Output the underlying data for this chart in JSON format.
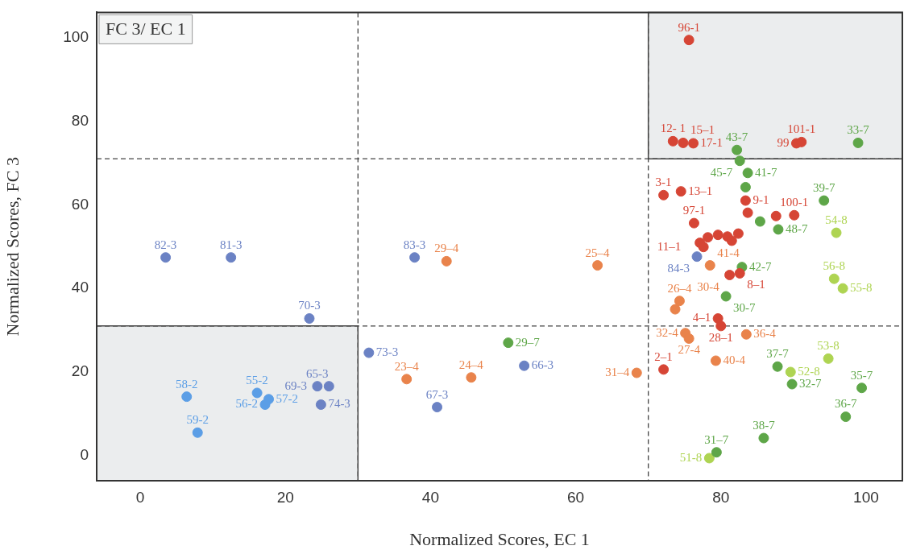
{
  "chart_data": {
    "type": "scatter",
    "xlabel": "Normalized Scores, EC 1",
    "ylabel": "Normalized Scores, FC 3",
    "xlim": [
      -6,
      105
    ],
    "ylim": [
      -6,
      106
    ],
    "xticks": [
      0,
      20,
      40,
      60,
      80,
      100
    ],
    "yticks": [
      0,
      20,
      40,
      60,
      80,
      100
    ],
    "grid": false,
    "legend": false,
    "marker": "circle",
    "ref_lines": [
      {
        "axis": "x",
        "value": 30,
        "line_style": "dashed"
      },
      {
        "axis": "x",
        "value": 70,
        "line_style": "dashed"
      },
      {
        "axis": "y",
        "value": 31,
        "line_style": "dashed"
      },
      {
        "axis": "y",
        "value": 71,
        "line_style": "dashed"
      }
    ],
    "series": [
      {
        "color": "#d64535",
        "x": [
          75.6,
          73.4,
          74.8,
          76.2,
          90.4,
          91.1,
          72.1,
          74.5,
          76.3,
          83.4,
          83.7,
          90.1,
          87.6,
          77.1,
          78.2,
          79.6,
          80.9,
          82.4,
          81.5,
          77.6,
          82.6,
          81.2,
          79.6,
          80.0,
          72.1
        ],
        "values": [
          99.4,
          75.2,
          74.8,
          74.7,
          74.7,
          75.0,
          62.3,
          63.2,
          55.6,
          61.0,
          58.1,
          57.5,
          57.3,
          50.9,
          52.2,
          52.8,
          52.4,
          53.1,
          51.4,
          49.9,
          43.6,
          43.2,
          32.8,
          31.0,
          20.6
        ]
      },
      {
        "color": "#5b9ee6",
        "x": [
          6.4,
          7.9,
          16.1,
          17.7,
          17.2
        ],
        "values": [
          14.1,
          5.5,
          15.0,
          13.5,
          12.2
        ]
      },
      {
        "color": "#6b82c4",
        "x": [
          3.5,
          12.5,
          37.8,
          23.3,
          31.5,
          40.9,
          52.9,
          24.4,
          26.0,
          24.9,
          76.7
        ],
        "values": [
          47.4,
          47.4,
          47.4,
          32.8,
          24.6,
          11.6,
          21.5,
          16.6,
          16.6,
          12.2,
          47.6
        ]
      },
      {
        "color": "#e9834b",
        "x": [
          42.2,
          63.0,
          36.7,
          45.6,
          68.4,
          74.3,
          73.7,
          75.1,
          75.6,
          78.5,
          79.3,
          83.5
        ],
        "values": [
          46.5,
          45.5,
          18.3,
          18.7,
          19.8,
          37.0,
          35.0,
          29.3,
          28.0,
          45.5,
          22.7,
          29.0
        ]
      },
      {
        "color": "#5ea648",
        "x": [
          50.7,
          82.2,
          98.9,
          82.6,
          83.7,
          83.4,
          94.2,
          85.4,
          87.9,
          82.9,
          80.7,
          87.8,
          89.8,
          99.4,
          97.2,
          85.9,
          79.4
        ],
        "values": [
          27.0,
          73.1,
          74.8,
          70.5,
          67.6,
          64.2,
          61.0,
          56.0,
          54.1,
          45.1,
          38.1,
          21.3,
          17.1,
          16.2,
          9.3,
          4.2,
          0.8
        ]
      },
      {
        "color": "#aed452",
        "x": [
          95.9,
          95.6,
          96.8,
          94.8,
          78.4,
          89.6
        ],
        "values": [
          53.3,
          42.3,
          40.0,
          23.2,
          -0.6,
          20.0
        ]
      }
    ],
    "annotations": [
      "FC 3/ EC 1",
      {
        "text": "96-1",
        "x": 75.6,
        "y": 99.4
      },
      {
        "text": "12- 1",
        "x": 73.4,
        "y": 75.2
      },
      {
        "text": "15–1",
        "x": 74.8,
        "y": 74.8
      },
      {
        "text": "17-1",
        "x": 76.2,
        "y": 74.7
      },
      {
        "text": "99",
        "x": 90.4,
        "y": 74.7
      },
      {
        "text": "101-1",
        "x": 91.1,
        "y": 75.0
      },
      {
        "text": "3-1",
        "x": 72.1,
        "y": 62.3
      },
      {
        "text": "13–1",
        "x": 74.5,
        "y": 63.2
      },
      {
        "text": "97-1",
        "x": 76.3,
        "y": 55.6
      },
      {
        "text": "9-1",
        "x": 83.4,
        "y": 61.0
      },
      {
        "text": "100-1",
        "x": 90.1,
        "y": 57.5
      },
      {
        "text": "11–1",
        "x": 77.6,
        "y": 49.9
      },
      {
        "text": "8–1",
        "x": 82.6,
        "y": 43.6
      },
      {
        "text": "4–1",
        "x": 79.6,
        "y": 32.8
      },
      {
        "text": "28–1",
        "x": 80.0,
        "y": 31.0
      },
      {
        "text": "2–1",
        "x": 72.1,
        "y": 20.6
      },
      {
        "text": "58-2",
        "x": 6.4,
        "y": 14.1
      },
      {
        "text": "59-2",
        "x": 7.9,
        "y": 5.5
      },
      {
        "text": "55-2",
        "x": 16.1,
        "y": 15.0
      },
      {
        "text": "57-2",
        "x": 17.7,
        "y": 13.5
      },
      {
        "text": "56-2",
        "x": 17.2,
        "y": 12.2
      },
      {
        "text": "82-3",
        "x": 3.5,
        "y": 47.4
      },
      {
        "text": "81-3",
        "x": 12.5,
        "y": 47.4
      },
      {
        "text": "83-3",
        "x": 37.8,
        "y": 47.4
      },
      {
        "text": "70-3",
        "x": 23.3,
        "y": 32.8
      },
      {
        "text": "73-3",
        "x": 31.5,
        "y": 24.6
      },
      {
        "text": "67-3",
        "x": 40.9,
        "y": 11.6
      },
      {
        "text": "66-3",
        "x": 52.9,
        "y": 21.5
      },
      {
        "text": "65-3",
        "x": 24.4,
        "y": 16.6
      },
      {
        "text": "69-3",
        "x": 26.0,
        "y": 16.6
      },
      {
        "text": "74-3",
        "x": 24.9,
        "y": 12.2
      },
      {
        "text": "84-3",
        "x": 76.7,
        "y": 47.6
      },
      {
        "text": "29–4",
        "x": 42.2,
        "y": 46.5
      },
      {
        "text": "25–4",
        "x": 63.0,
        "y": 45.5
      },
      {
        "text": "23–4",
        "x": 36.7,
        "y": 18.3
      },
      {
        "text": "24–4",
        "x": 45.6,
        "y": 18.7
      },
      {
        "text": "31–4",
        "x": 68.4,
        "y": 19.8
      },
      {
        "text": "26–4",
        "x": 74.3,
        "y": 37.0
      },
      {
        "text": "30-4",
        "x": 73.7,
        "y": 35.0
      },
      {
        "text": "32-4",
        "x": 75.1,
        "y": 29.3
      },
      {
        "text": "27-4",
        "x": 75.6,
        "y": 28.0
      },
      {
        "text": "41-4",
        "x": 78.5,
        "y": 45.5
      },
      {
        "text": "40-4",
        "x": 79.3,
        "y": 22.7
      },
      {
        "text": "36-4",
        "x": 83.5,
        "y": 29.0
      },
      {
        "text": "29–7",
        "x": 50.7,
        "y": 27.0
      },
      {
        "text": "43-7",
        "x": 82.2,
        "y": 73.1
      },
      {
        "text": "33-7",
        "x": 98.9,
        "y": 74.8
      },
      {
        "text": "45-7",
        "x": 82.6,
        "y": 70.5
      },
      {
        "text": "41-7",
        "x": 83.7,
        "y": 67.6
      },
      {
        "text": "39-7",
        "x": 94.2,
        "y": 61.0
      },
      {
        "text": "48-7",
        "x": 87.9,
        "y": 54.1
      },
      {
        "text": "42-7",
        "x": 82.9,
        "y": 45.1
      },
      {
        "text": "30-7",
        "x": 80.7,
        "y": 38.1
      },
      {
        "text": "37-7",
        "x": 87.8,
        "y": 21.3
      },
      {
        "text": "32-7",
        "x": 89.8,
        "y": 17.1
      },
      {
        "text": "35-7",
        "x": 99.4,
        "y": 16.2
      },
      {
        "text": "36-7",
        "x": 97.2,
        "y": 9.3
      },
      {
        "text": "38-7",
        "x": 85.9,
        "y": 4.2
      },
      {
        "text": "31–7",
        "x": 79.4,
        "y": 0.8
      },
      {
        "text": "54-8",
        "x": 95.9,
        "y": 53.3
      },
      {
        "text": "56-8",
        "x": 95.6,
        "y": 42.3
      },
      {
        "text": "55-8",
        "x": 96.8,
        "y": 40.0
      },
      {
        "text": "53-8",
        "x": 94.8,
        "y": 23.2
      },
      {
        "text": "51-8",
        "x": 78.4,
        "y": -0.6
      },
      {
        "text": "52-8",
        "x": 89.6,
        "y": 20.0
      }
    ]
  }
}
